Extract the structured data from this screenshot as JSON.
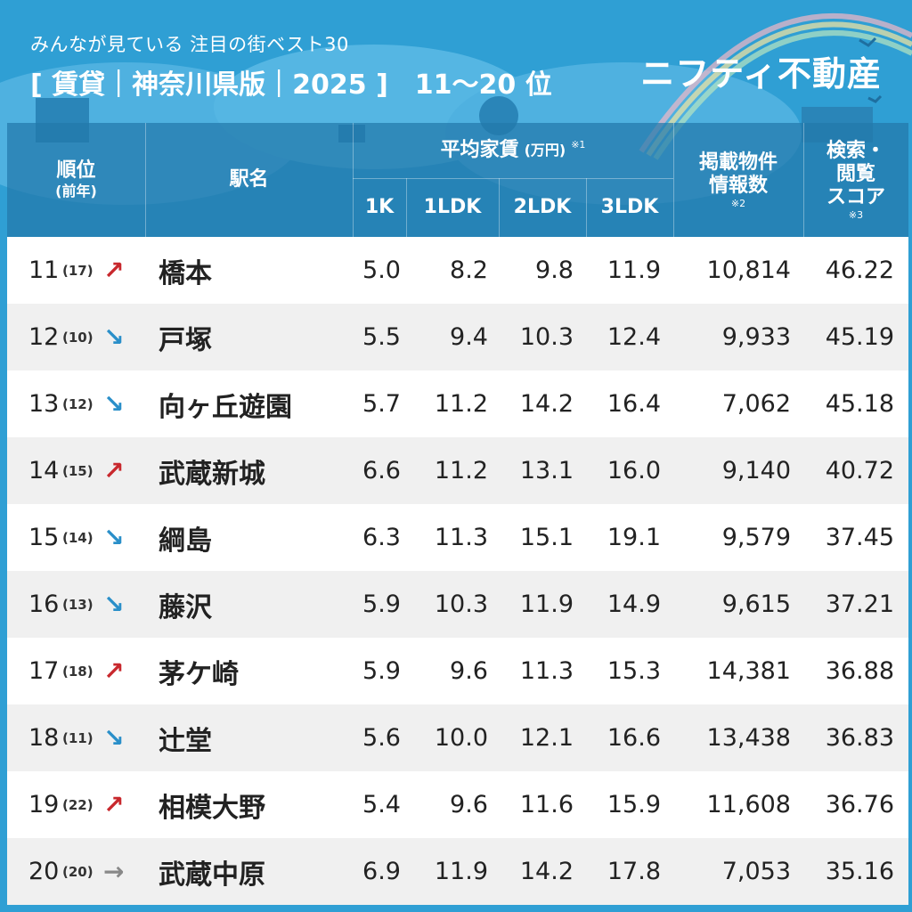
{
  "header": {
    "subtitle": "みんなが見ている 注目の街ベスト30",
    "title": "[ 賃貸｜神奈川県版｜2025 ]　11〜20 位",
    "logo": "ニフティ不動産"
  },
  "columns": {
    "rank": "順位",
    "rank_sub": "(前年)",
    "station": "駅名",
    "rent": "平均家賃",
    "rent_unit": "(万円)",
    "rent_note": "※1",
    "k1": "1K",
    "ldk1": "1LDK",
    "ldk2": "2LDK",
    "ldk3": "3LDK",
    "listings_line1": "掲載物件",
    "listings_line2": "情報数",
    "listings_note": "※2",
    "score_line1": "検索・",
    "score_line2": "閲覧",
    "score_line3": "スコア",
    "score_note": "※3"
  },
  "arrows": {
    "up": "↗",
    "down": "↘",
    "flat": "→"
  },
  "rows": [
    {
      "rank": "11",
      "prev": "(17)",
      "trend": "up",
      "station": "橋本",
      "k1": "5.0",
      "ldk1": "8.2",
      "ldk2": "9.8",
      "ldk3": "11.9",
      "listings": "10,814",
      "score": "46.22"
    },
    {
      "rank": "12",
      "prev": "(10)",
      "trend": "down",
      "station": "戸塚",
      "k1": "5.5",
      "ldk1": "9.4",
      "ldk2": "10.3",
      "ldk3": "12.4",
      "listings": "9,933",
      "score": "45.19"
    },
    {
      "rank": "13",
      "prev": "(12)",
      "trend": "down",
      "station": "向ヶ丘遊園",
      "k1": "5.7",
      "ldk1": "11.2",
      "ldk2": "14.2",
      "ldk3": "16.4",
      "listings": "7,062",
      "score": "45.18"
    },
    {
      "rank": "14",
      "prev": "(15)",
      "trend": "up",
      "station": "武蔵新城",
      "k1": "6.6",
      "ldk1": "11.2",
      "ldk2": "13.1",
      "ldk3": "16.0",
      "listings": "9,140",
      "score": "40.72"
    },
    {
      "rank": "15",
      "prev": "(14)",
      "trend": "down",
      "station": "綱島",
      "k1": "6.3",
      "ldk1": "11.3",
      "ldk2": "15.1",
      "ldk3": "19.1",
      "listings": "9,579",
      "score": "37.45"
    },
    {
      "rank": "16",
      "prev": "(13)",
      "trend": "down",
      "station": "藤沢",
      "k1": "5.9",
      "ldk1": "10.3",
      "ldk2": "11.9",
      "ldk3": "14.9",
      "listings": "9,615",
      "score": "37.21"
    },
    {
      "rank": "17",
      "prev": "(18)",
      "trend": "up",
      "station": "茅ケ崎",
      "k1": "5.9",
      "ldk1": "9.6",
      "ldk2": "11.3",
      "ldk3": "15.3",
      "listings": "14,381",
      "score": "36.88"
    },
    {
      "rank": "18",
      "prev": "(11)",
      "trend": "down",
      "station": "辻堂",
      "k1": "5.6",
      "ldk1": "10.0",
      "ldk2": "12.1",
      "ldk3": "16.6",
      "listings": "13,438",
      "score": "36.83"
    },
    {
      "rank": "19",
      "prev": "(22)",
      "trend": "up",
      "station": "相模大野",
      "k1": "5.4",
      "ldk1": "9.6",
      "ldk2": "11.6",
      "ldk3": "15.9",
      "listings": "11,608",
      "score": "36.76"
    },
    {
      "rank": "20",
      "prev": "(20)",
      "trend": "flat",
      "station": "武蔵中原",
      "k1": "6.9",
      "ldk1": "11.9",
      "ldk2": "14.2",
      "ldk3": "17.8",
      "listings": "7,053",
      "score": "35.16"
    }
  ]
}
